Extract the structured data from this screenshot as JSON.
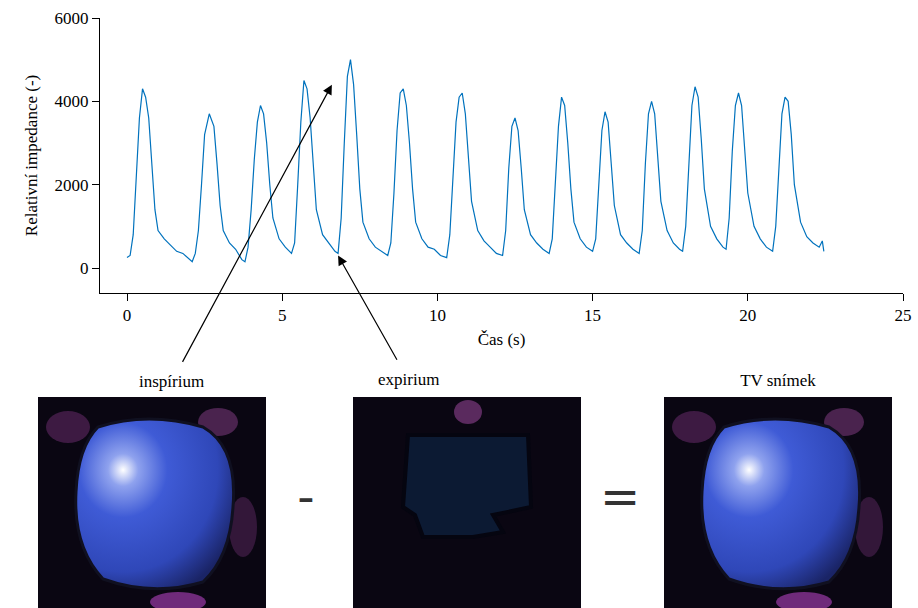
{
  "chart_data": {
    "type": "line",
    "x_label": "Čas (s)",
    "y_label": "Relativní impedance (-)",
    "xlim": [
      -0.87,
      25
    ],
    "ylim": [
      -600,
      6000
    ],
    "xticks": [
      0,
      5,
      10,
      15,
      20,
      25
    ],
    "yticks": [
      0,
      2000,
      4000,
      6000
    ],
    "grid": false,
    "color": "#0072bd",
    "x": [
      0.0,
      0.1,
      0.2,
      0.3,
      0.4,
      0.5,
      0.6,
      0.7,
      0.8,
      0.9,
      1.0,
      1.2,
      1.4,
      1.6,
      1.8,
      2.0,
      2.1,
      2.2,
      2.3,
      2.4,
      2.5,
      2.65,
      2.8,
      2.9,
      3.0,
      3.1,
      3.3,
      3.5,
      3.7,
      3.8,
      3.9,
      4.0,
      4.1,
      4.2,
      4.3,
      4.4,
      4.5,
      4.6,
      4.7,
      4.9,
      5.1,
      5.3,
      5.4,
      5.5,
      5.6,
      5.7,
      5.8,
      5.9,
      6.0,
      6.1,
      6.3,
      6.5,
      6.7,
      6.8,
      6.9,
      7.0,
      7.1,
      7.2,
      7.3,
      7.4,
      7.5,
      7.6,
      7.8,
      8.0,
      8.2,
      8.4,
      8.5,
      8.6,
      8.7,
      8.8,
      8.9,
      9.0,
      9.1,
      9.2,
      9.3,
      9.5,
      9.7,
      9.9,
      10.1,
      10.3,
      10.4,
      10.5,
      10.6,
      10.7,
      10.8,
      10.9,
      11.0,
      11.1,
      11.3,
      11.5,
      11.7,
      11.9,
      12.1,
      12.2,
      12.3,
      12.4,
      12.5,
      12.6,
      12.7,
      12.8,
      13.0,
      13.2,
      13.4,
      13.6,
      13.7,
      13.8,
      13.9,
      14.0,
      14.1,
      14.2,
      14.3,
      14.4,
      14.6,
      14.8,
      15.0,
      15.1,
      15.2,
      15.3,
      15.4,
      15.5,
      15.6,
      15.7,
      15.9,
      16.1,
      16.3,
      16.5,
      16.6,
      16.7,
      16.8,
      16.9,
      17.0,
      17.1,
      17.2,
      17.4,
      17.6,
      17.8,
      17.9,
      18.0,
      18.1,
      18.2,
      18.3,
      18.4,
      18.5,
      18.6,
      18.8,
      19.0,
      19.2,
      19.3,
      19.4,
      19.5,
      19.6,
      19.7,
      19.8,
      19.9,
      20.0,
      20.2,
      20.4,
      20.6,
      20.8,
      20.9,
      21.0,
      21.1,
      21.2,
      21.3,
      21.4,
      21.5,
      21.7,
      21.9,
      22.1,
      22.3,
      22.4,
      22.45
    ],
    "values": [
      250,
      300,
      800,
      2200,
      3600,
      4300,
      4100,
      3600,
      2400,
      1400,
      900,
      700,
      550,
      400,
      350,
      200,
      150,
      350,
      900,
      2000,
      3200,
      3700,
      3400,
      2500,
      1500,
      900,
      600,
      450,
      200,
      150,
      500,
      1400,
      2600,
      3500,
      3900,
      3700,
      3000,
      2000,
      1200,
      700,
      500,
      350,
      600,
      2000,
      3500,
      4500,
      4300,
      3600,
      2400,
      1400,
      800,
      600,
      400,
      350,
      1200,
      3000,
      4600,
      5000,
      4400,
      3200,
      1900,
      1100,
      700,
      500,
      400,
      300,
      600,
      1800,
      3300,
      4200,
      4300,
      3900,
      3000,
      1900,
      1100,
      700,
      500,
      450,
      300,
      250,
      800,
      2200,
      3500,
      4100,
      4200,
      3700,
      2700,
      1600,
      900,
      650,
      500,
      350,
      300,
      900,
      2400,
      3400,
      3600,
      3300,
      2400,
      1400,
      800,
      600,
      450,
      350,
      700,
      2000,
      3400,
      4100,
      3900,
      3000,
      1900,
      1100,
      700,
      500,
      400,
      700,
      2000,
      3300,
      3750,
      3500,
      2500,
      1500,
      800,
      600,
      450,
      350,
      900,
      2500,
      3700,
      4000,
      3700,
      2700,
      1600,
      900,
      600,
      450,
      400,
      1000,
      2600,
      3900,
      4350,
      4100,
      3100,
      1900,
      1000,
      700,
      500,
      450,
      1200,
      2800,
      3900,
      4200,
      3900,
      2900,
      1800,
      1000,
      700,
      500,
      400,
      1000,
      2500,
      3700,
      4100,
      4000,
      3200,
      2000,
      1100,
      750,
      600,
      500,
      650,
      400
    ],
    "annotations": [
      {
        "text": "inspírium",
        "x": 6.6,
        "y": 4400
      },
      {
        "text": "expirium",
        "x": 6.8,
        "y": 300
      }
    ]
  },
  "image_row": {
    "operators": [
      "-",
      "="
    ],
    "caption": "TV snímek"
  }
}
